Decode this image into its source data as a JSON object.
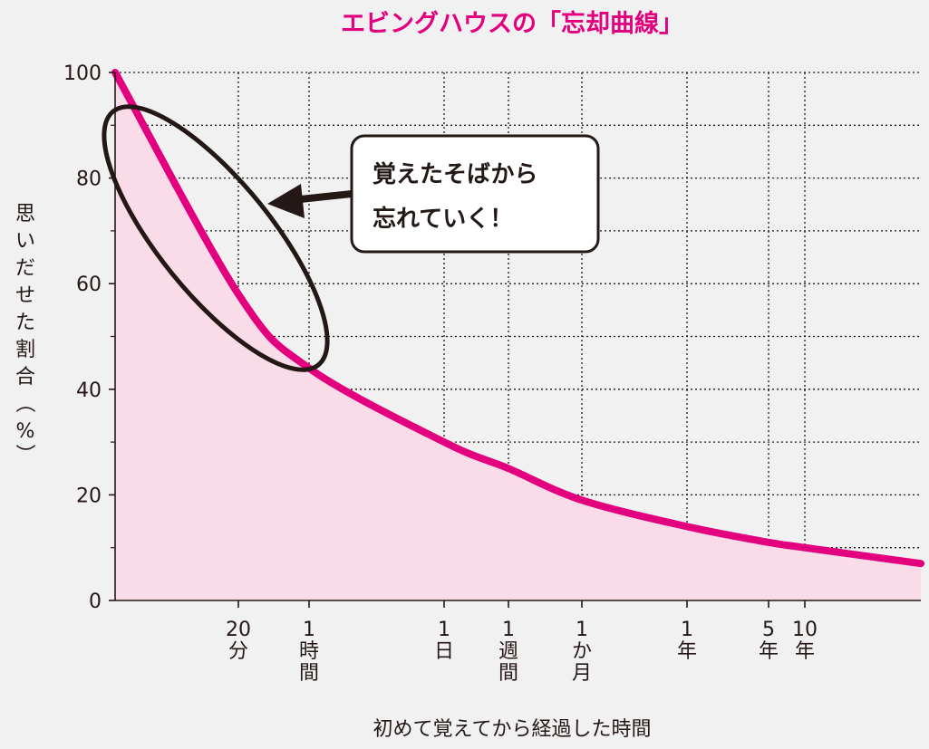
{
  "chart_data": {
    "type": "area",
    "title": "エビングハウスの「忘却曲線」",
    "ylabel": "思いだせた割合（%）",
    "xlabel": "初めて覚えてから経過した時間",
    "ylim": [
      0,
      100
    ],
    "yticks": [
      0,
      20,
      40,
      60,
      80,
      100
    ],
    "y_tick_labels": [
      "0",
      "20",
      "40",
      "60",
      "80",
      "100"
    ],
    "x_ticks": [
      {
        "lines": [
          "20",
          "分"
        ]
      },
      {
        "lines": [
          "1",
          "時",
          "間"
        ]
      },
      {
        "lines": [
          "1",
          "日"
        ]
      },
      {
        "lines": [
          "1",
          "週",
          "間"
        ]
      },
      {
        "lines": [
          "1",
          "か",
          "月"
        ]
      },
      {
        "lines": [
          "1",
          "年"
        ]
      },
      {
        "lines": [
          "5",
          "年"
        ]
      },
      {
        "lines": [
          "10",
          "年"
        ]
      }
    ],
    "series": [
      {
        "name": "忘却曲線",
        "points": [
          {
            "x": "0",
            "y": 100
          },
          {
            "x": "20分",
            "y": 58
          },
          {
            "x": "1時間",
            "y": 44
          },
          {
            "x": "1日",
            "y": 30
          },
          {
            "x": "1週間",
            "y": 25
          },
          {
            "x": "1か月",
            "y": 19
          },
          {
            "x": "1年",
            "y": 14
          },
          {
            "x": "5年",
            "y": 11
          },
          {
            "x": "10年",
            "y": 10
          },
          {
            "x": "end",
            "y": 7
          }
        ]
      }
    ],
    "annotation": {
      "lines": [
        "覚えたそばから",
        "忘れていく！"
      ]
    },
    "colors": {
      "curve": "#e3007f",
      "fill": "#fadbe8",
      "grid": "#231815",
      "text": "#231815"
    }
  }
}
